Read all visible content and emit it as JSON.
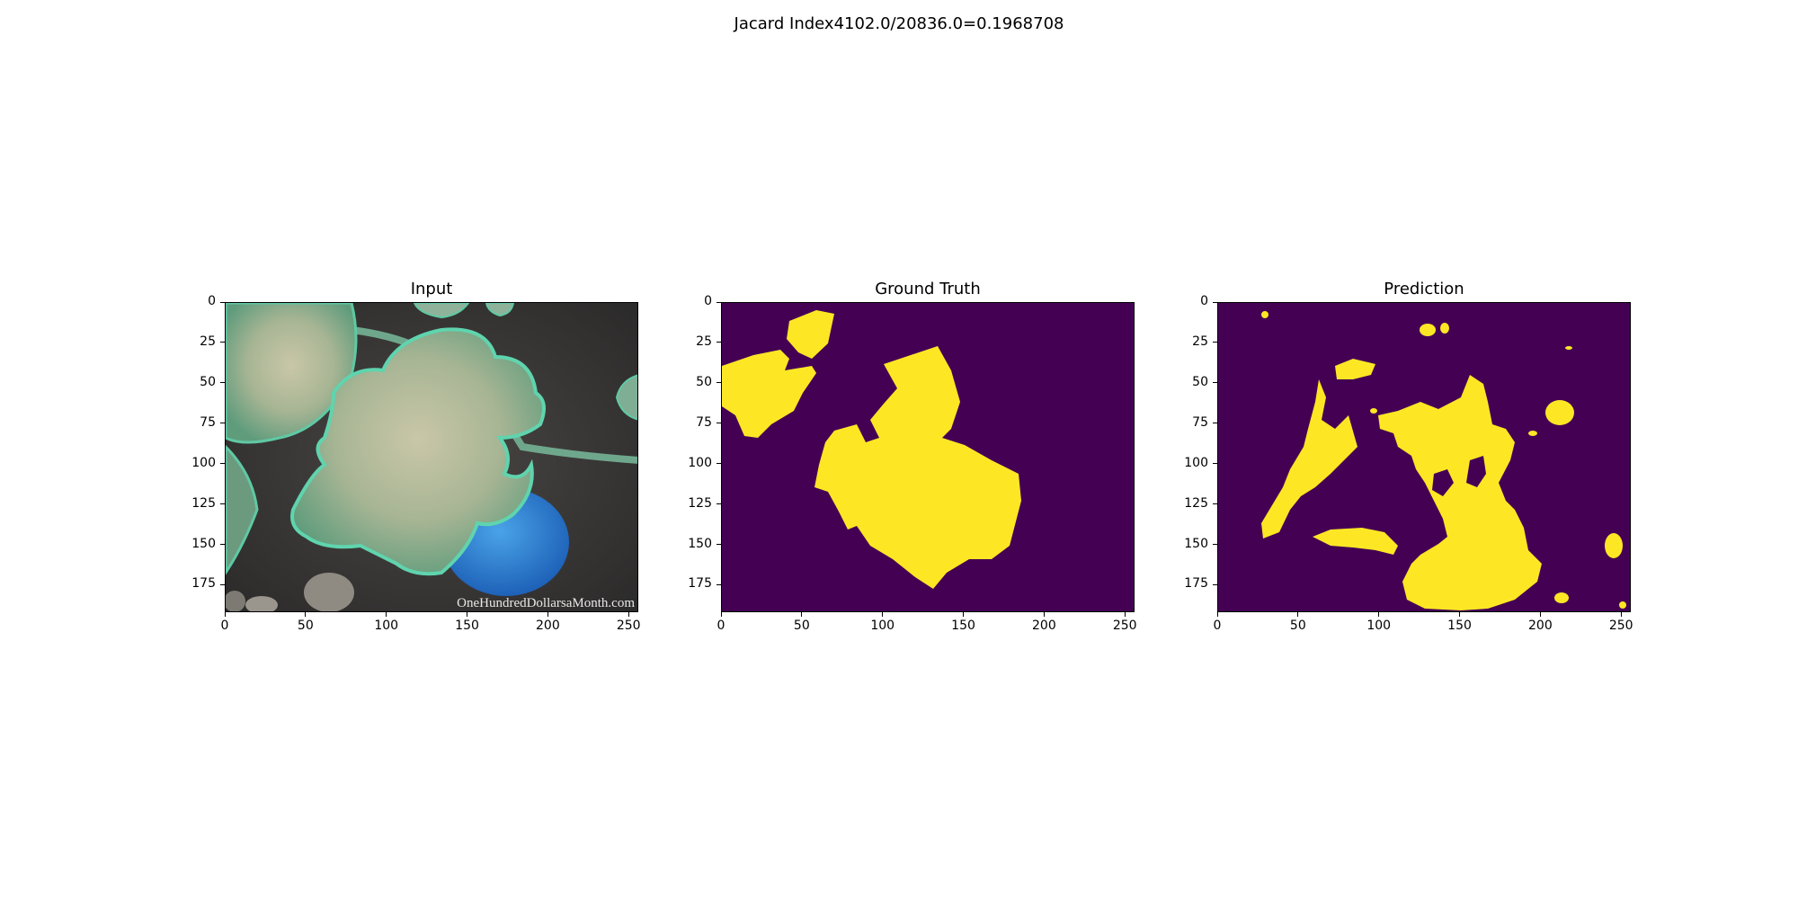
{
  "suptitle": "Jacard Index4102.0/20836.0=0.1968708",
  "chart_data": [
    {
      "type": "image",
      "title": "Input",
      "xlim": [
        0,
        256
      ],
      "ylim": [
        192,
        0
      ],
      "xticks": [
        0,
        50,
        100,
        150,
        200,
        250
      ],
      "yticks": [
        0,
        25,
        50,
        75,
        100,
        125,
        150,
        175
      ],
      "watermark": "OneHundredDollarsaMonth.com"
    },
    {
      "type": "heatmap",
      "title": "Ground Truth",
      "xlim": [
        0,
        256
      ],
      "ylim": [
        192,
        0
      ],
      "xticks": [
        0,
        50,
        100,
        150,
        200,
        250
      ],
      "yticks": [
        0,
        25,
        50,
        75,
        100,
        125,
        150,
        175
      ],
      "colors": {
        "background": "#440154",
        "foreground": "#fde725"
      }
    },
    {
      "type": "heatmap",
      "title": "Prediction",
      "xlim": [
        0,
        256
      ],
      "ylim": [
        192,
        0
      ],
      "xticks": [
        0,
        50,
        100,
        150,
        200,
        250
      ],
      "yticks": [
        0,
        25,
        50,
        75,
        100,
        125,
        150,
        175
      ],
      "colors": {
        "background": "#440154",
        "foreground": "#fde725"
      }
    }
  ]
}
